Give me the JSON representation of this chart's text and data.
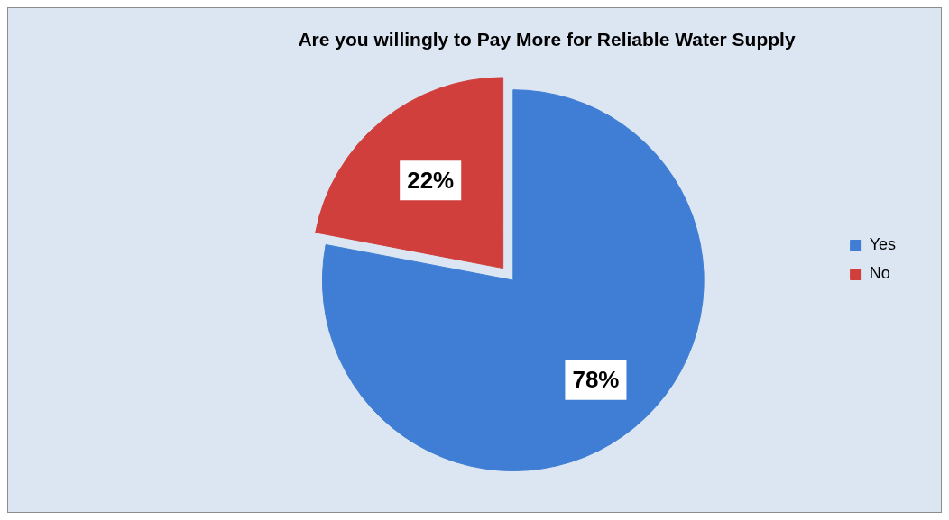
{
  "chart_data": {
    "type": "pie",
    "title": "Are you willingly to Pay More for Reliable Water Supply",
    "categories": [
      "Yes",
      "No"
    ],
    "values": [
      78,
      22
    ],
    "colors": [
      "#3f7ed4",
      "#d03f3b"
    ],
    "value_labels": [
      "78%",
      "22%"
    ],
    "legend": "right"
  }
}
